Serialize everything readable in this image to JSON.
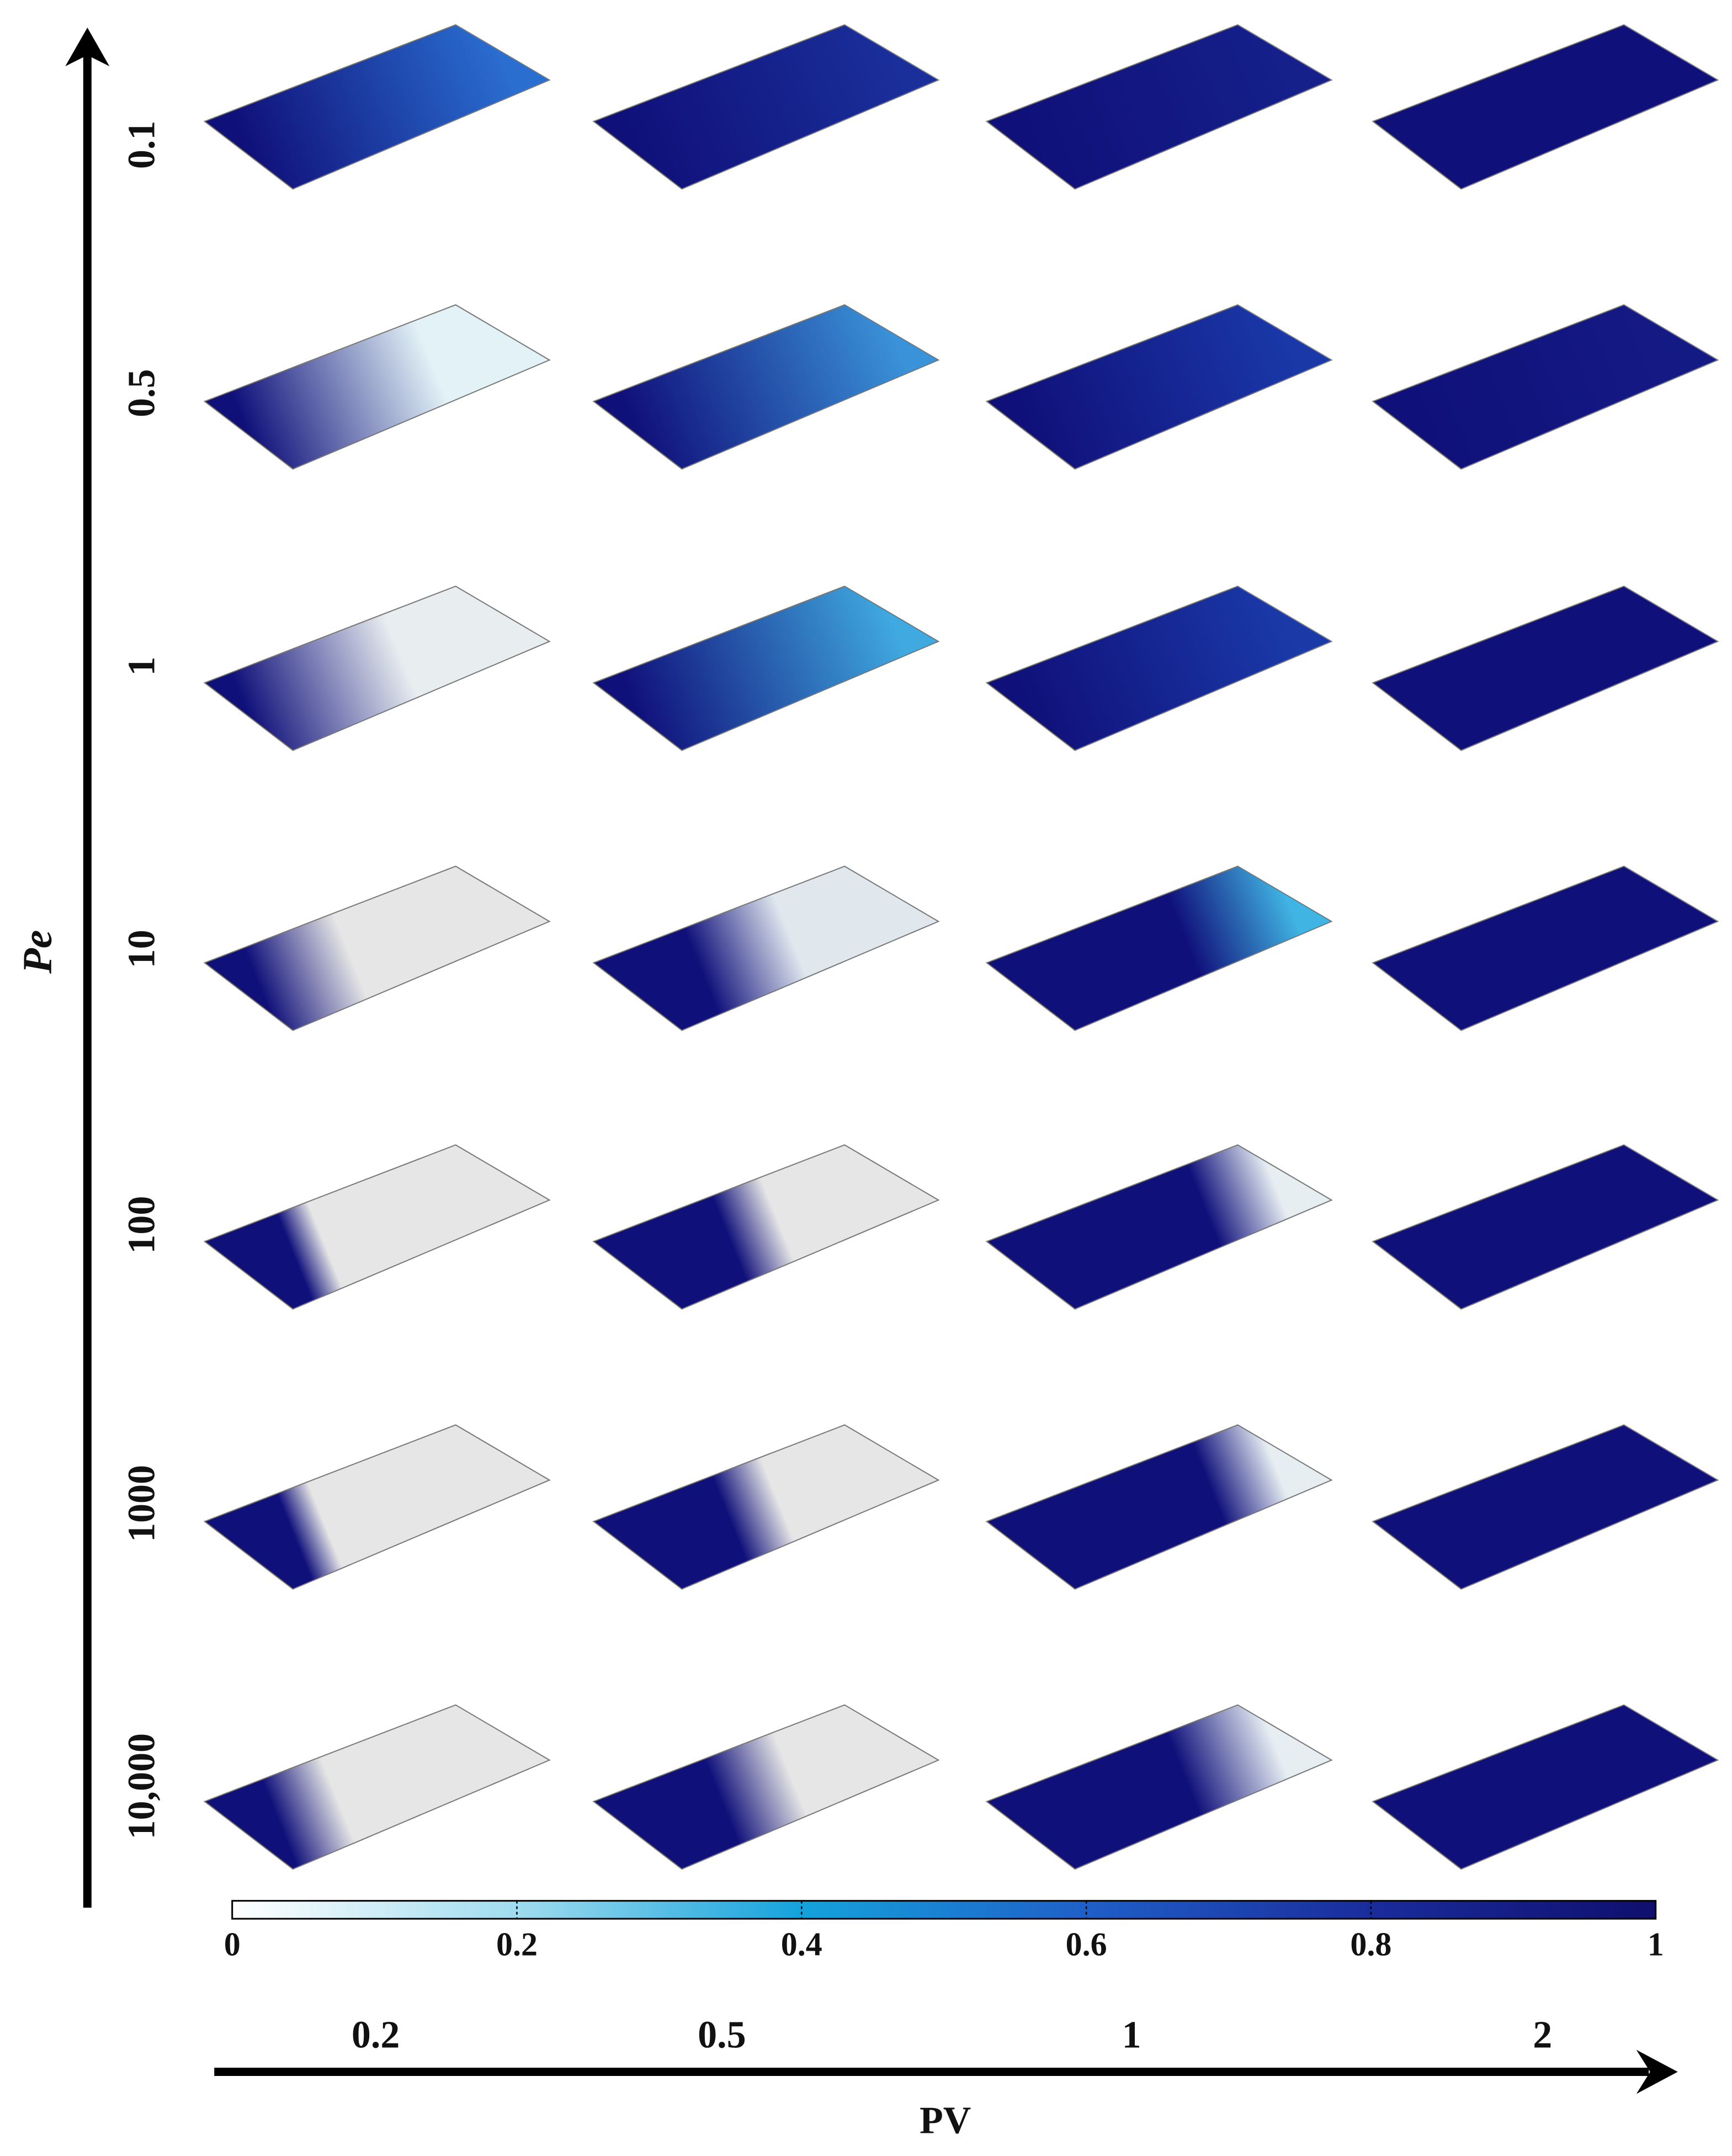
{
  "figure": {
    "y_axis_label": "Pe",
    "row_labels": [
      "0.1",
      "0.5",
      "1",
      "10",
      "100",
      "1000",
      "10,000"
    ],
    "x_axis_label": "PV",
    "column_labels": [
      "0.2",
      "0.5",
      "1",
      "2"
    ],
    "colorbar": {
      "range": [
        0,
        1
      ],
      "ticks": [
        0,
        0.2,
        0.4,
        0.6,
        0.8,
        1
      ]
    }
  }
}
